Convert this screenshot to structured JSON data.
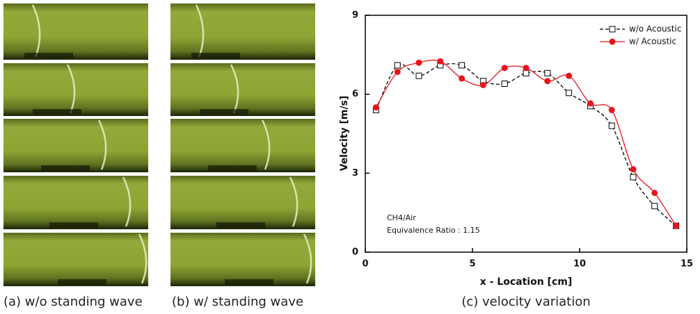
{
  "figure": {
    "captions": [
      "(a) w/o standing wave",
      "(b) w/ standing wave",
      "(c) velocity variation"
    ]
  },
  "chart_data": {
    "type": "line",
    "xlabel": "x - Location [cm]",
    "ylabel": "Velocity [m/s]",
    "annotations": [
      "CH4/Air",
      "Equivalence Ratio : 1.15"
    ],
    "x": [
      0.5,
      1.5,
      2.5,
      3.5,
      4.5,
      5.5,
      6.5,
      7.5,
      8.5,
      9.5,
      10.5,
      11.5,
      12.5,
      13.5,
      14.5
    ],
    "series": [
      {
        "name": "w/o Acoustic",
        "color": "#000000",
        "marker": "square",
        "dashed": true,
        "values": [
          5.4,
          7.1,
          6.7,
          7.1,
          7.1,
          6.5,
          6.4,
          6.8,
          6.8,
          6.05,
          5.55,
          4.8,
          2.85,
          1.75,
          1.0
        ]
      },
      {
        "name": "w/ Acoustic",
        "color": "#e8141c",
        "marker": "circle",
        "dashed": false,
        "values": [
          5.5,
          6.85,
          7.2,
          7.25,
          6.6,
          6.35,
          7.0,
          7.0,
          6.5,
          6.7,
          5.65,
          5.4,
          3.15,
          2.25,
          1.0
        ]
      }
    ],
    "xlim": [
      0,
      15
    ],
    "xticks": [
      0,
      5,
      10,
      15
    ],
    "ylim": [
      0,
      9
    ],
    "yticks": [
      0,
      3,
      6,
      9
    ],
    "legend": "upper right"
  }
}
